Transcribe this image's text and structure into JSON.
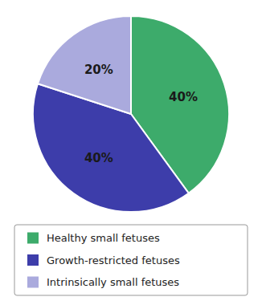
{
  "chart_data": {
    "type": "pie",
    "categories": [
      "Healthy small fetuses",
      "Growth-restricted fetuses",
      "Intrinsically small fetuses"
    ],
    "values": [
      40,
      40,
      20
    ],
    "value_labels": [
      "40%",
      "40%",
      "20%"
    ],
    "colors": [
      "#3dab6b",
      "#3d3daa",
      "#aaaadd"
    ],
    "data_labels": true,
    "legend": "bottom"
  }
}
